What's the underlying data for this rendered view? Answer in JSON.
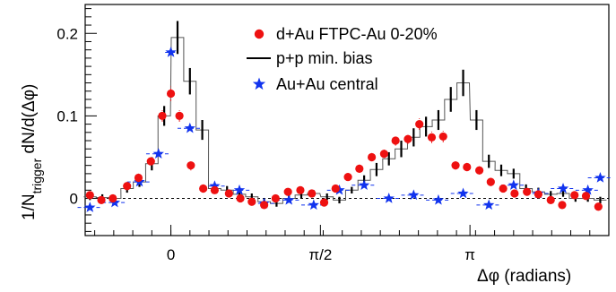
{
  "chart_data": {
    "type": "scatter",
    "xlabel": "Δφ (radians)",
    "ylabel_main": "1/N",
    "ylabel_sub": "trigger",
    "ylabel_rest": " dN/d(Δφ)",
    "xlim": [
      -0.9,
      4.6
    ],
    "ylim": [
      -0.045,
      0.235
    ],
    "x_ticks": [
      {
        "value": 0,
        "label": "0"
      },
      {
        "value": 1.5708,
        "label": "π/2"
      },
      {
        "value": 3.1416,
        "label": "π"
      }
    ],
    "y_ticks": [
      {
        "value": 0,
        "label": "0"
      },
      {
        "value": 0.1,
        "label": "0.1"
      },
      {
        "value": 0.2,
        "label": "0.2"
      }
    ],
    "reference_line": 0,
    "bin_width": 0.1309,
    "legend_placement": "top-right",
    "series": [
      {
        "name": "d+Au FTPC-Au 0-20%",
        "marker": "circle",
        "color": "#ee1111",
        "x": [
          -0.85,
          -0.73,
          -0.61,
          -0.46,
          -0.34,
          -0.21,
          -0.09,
          0.0,
          0.09,
          0.21,
          0.34,
          0.46,
          0.61,
          0.73,
          0.85,
          0.98,
          1.1,
          1.23,
          1.36,
          1.48,
          1.61,
          1.73,
          1.86,
          1.98,
          2.11,
          2.24,
          2.36,
          2.49,
          2.61,
          2.74,
          2.86,
          2.99,
          3.11,
          3.24,
          3.36,
          3.49,
          3.61,
          3.74,
          3.86,
          3.99,
          4.11,
          4.24,
          4.36,
          4.49
        ],
        "y": [
          0.004,
          -0.002,
          0.0,
          0.015,
          0.025,
          0.045,
          0.1,
          0.127,
          0.1,
          0.04,
          0.012,
          0.01,
          0.006,
          0.0,
          -0.004,
          -0.008,
          0.0,
          0.008,
          0.01,
          0.006,
          -0.005,
          0.012,
          0.026,
          0.036,
          0.05,
          0.054,
          0.07,
          0.072,
          0.09,
          0.074,
          0.075,
          0.04,
          0.038,
          0.034,
          0.02,
          0.012,
          0.006,
          0.008,
          0.005,
          -0.002,
          -0.008,
          0.004,
          0.003,
          -0.01
        ],
        "err": [
          0.004,
          0.004,
          0.004,
          0.004,
          0.005,
          0.005,
          0.007,
          0.009,
          0.007,
          0.006,
          0.005,
          0.004,
          0.004,
          0.004,
          0.004,
          0.004,
          0.004,
          0.004,
          0.004,
          0.004,
          0.004,
          0.004,
          0.005,
          0.005,
          0.005,
          0.005,
          0.006,
          0.006,
          0.007,
          0.007,
          0.007,
          0.005,
          0.005,
          0.005,
          0.005,
          0.004,
          0.004,
          0.004,
          0.004,
          0.004,
          0.004,
          0.004,
          0.004,
          0.004
        ]
      },
      {
        "name": "p+p min. bias",
        "marker": "histogram",
        "color": "#000000",
        "x": [
          -0.85,
          -0.72,
          -0.59,
          -0.46,
          -0.33,
          -0.2,
          -0.07,
          0.07,
          0.2,
          0.33,
          0.46,
          0.59,
          0.72,
          0.85,
          0.98,
          1.11,
          1.24,
          1.37,
          1.5,
          1.64,
          1.77,
          1.9,
          2.03,
          2.16,
          2.29,
          2.42,
          2.55,
          2.68,
          2.81,
          2.94,
          3.07,
          3.21,
          3.34,
          3.47,
          3.6,
          3.73,
          3.86,
          3.99,
          4.12,
          4.25,
          4.38,
          4.51
        ],
        "y": [
          0.002,
          0.001,
          0.0,
          0.012,
          0.02,
          0.042,
          0.1,
          0.195,
          0.142,
          0.083,
          0.012,
          0.01,
          0.005,
          0.002,
          -0.004,
          -0.006,
          0.0,
          0.004,
          0.006,
          0.002,
          -0.002,
          0.01,
          0.022,
          0.035,
          0.048,
          0.06,
          0.074,
          0.087,
          0.095,
          0.12,
          0.14,
          0.095,
          0.045,
          0.034,
          0.03,
          0.012,
          0.008,
          0.005,
          0.006,
          0.0,
          0.0,
          -0.002
        ],
        "err": [
          0.004,
          0.004,
          0.004,
          0.005,
          0.006,
          0.008,
          0.012,
          0.02,
          0.016,
          0.012,
          0.006,
          0.005,
          0.005,
          0.004,
          0.004,
          0.004,
          0.004,
          0.004,
          0.004,
          0.004,
          0.004,
          0.004,
          0.006,
          0.008,
          0.008,
          0.01,
          0.011,
          0.012,
          0.012,
          0.015,
          0.016,
          0.012,
          0.008,
          0.007,
          0.006,
          0.005,
          0.005,
          0.004,
          0.004,
          0.004,
          0.004,
          0.004
        ]
      },
      {
        "name": "Au+Au central",
        "marker": "star",
        "color": "#1133ee",
        "x": [
          -0.85,
          -0.59,
          -0.33,
          -0.13,
          0.0,
          0.2,
          0.46,
          0.72,
          0.98,
          1.24,
          1.5,
          1.77,
          2.03,
          2.29,
          2.55,
          2.81,
          3.07,
          3.34,
          3.6,
          3.86,
          4.12,
          4.38,
          4.51
        ],
        "y": [
          -0.011,
          -0.005,
          0.02,
          0.054,
          0.177,
          0.085,
          0.015,
          0.01,
          -0.006,
          -0.002,
          -0.008,
          0.01,
          0.016,
          0.0,
          0.004,
          -0.002,
          0.006,
          -0.008,
          0.016,
          0.006,
          0.012,
          0.01,
          0.025
        ],
        "xerr": [
          0.13,
          0.13,
          0.13,
          0.13,
          0.06,
          0.13,
          0.13,
          0.13,
          0.13,
          0.13,
          0.13,
          0.13,
          0.13,
          0.13,
          0.13,
          0.13,
          0.13,
          0.13,
          0.13,
          0.13,
          0.13,
          0.13,
          0.13
        ]
      }
    ]
  }
}
